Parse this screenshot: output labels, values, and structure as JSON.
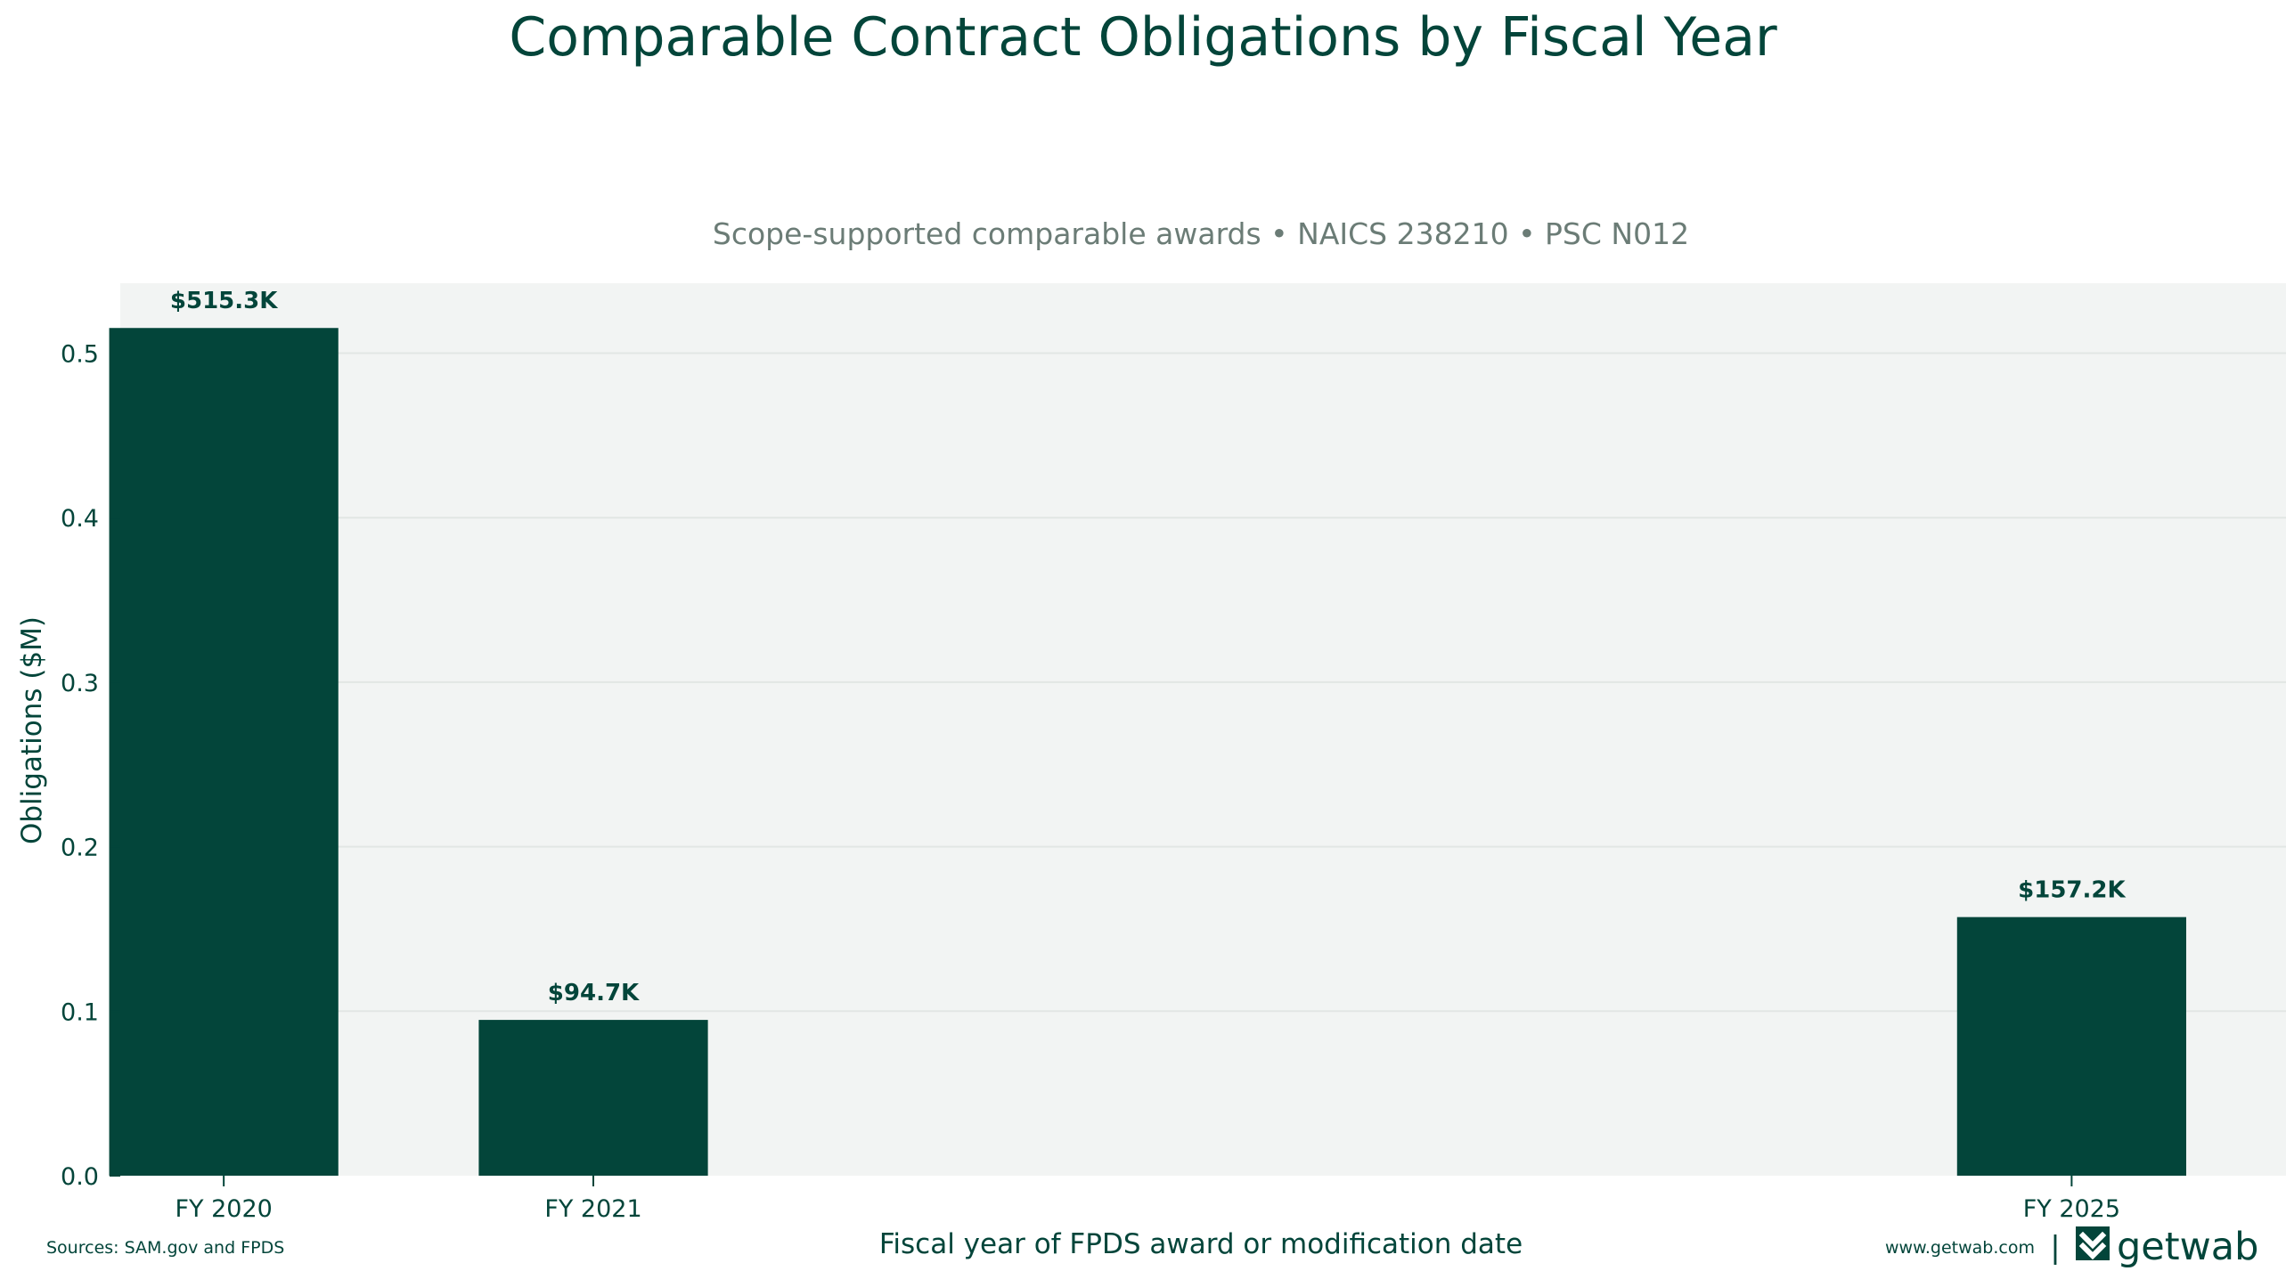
{
  "colors": {
    "bar": "#03453a",
    "plot_background": "#f2f4f3",
    "gridline": "#e2e6e4",
    "text": "#03453a",
    "subtitle": "#6b7c76"
  },
  "chart_data": {
    "type": "bar",
    "title": "Comparable Contract Obligations by Fiscal Year",
    "subtitle": "Scope-supported comparable awards • NAICS 238210 • PSC N012",
    "xlabel": "Fiscal year of FPDS award or modification date",
    "ylabel": "Obligations ($M)",
    "x_axis": "fiscal year",
    "xlim": [
      2019.72,
      2025.58
    ],
    "ylim": [
      0,
      0.5425
    ],
    "yticks": [
      0.0,
      0.1,
      0.2,
      0.3,
      0.4,
      0.5
    ],
    "ytick_labels": [
      "0.0",
      "0.1",
      "0.2",
      "0.3",
      "0.4",
      "0.5"
    ],
    "grid": true,
    "legend": "none",
    "bar_width_years": 0.62,
    "bars": [
      {
        "year": 2020,
        "category": "FY 2020",
        "value": 0.5153,
        "label": "$515.3K"
      },
      {
        "year": 2021,
        "category": "FY 2021",
        "value": 0.0947,
        "label": "$94.7K"
      },
      {
        "year": 2025,
        "category": "FY 2025",
        "value": 0.1572,
        "label": "$157.2K"
      }
    ]
  },
  "footer": {
    "sources": "Sources: SAM.gov and FPDS",
    "website": "www.getwab.com",
    "separator": "|",
    "brand_name": "getwab",
    "logo_icon": "getwab-logo-icon"
  }
}
